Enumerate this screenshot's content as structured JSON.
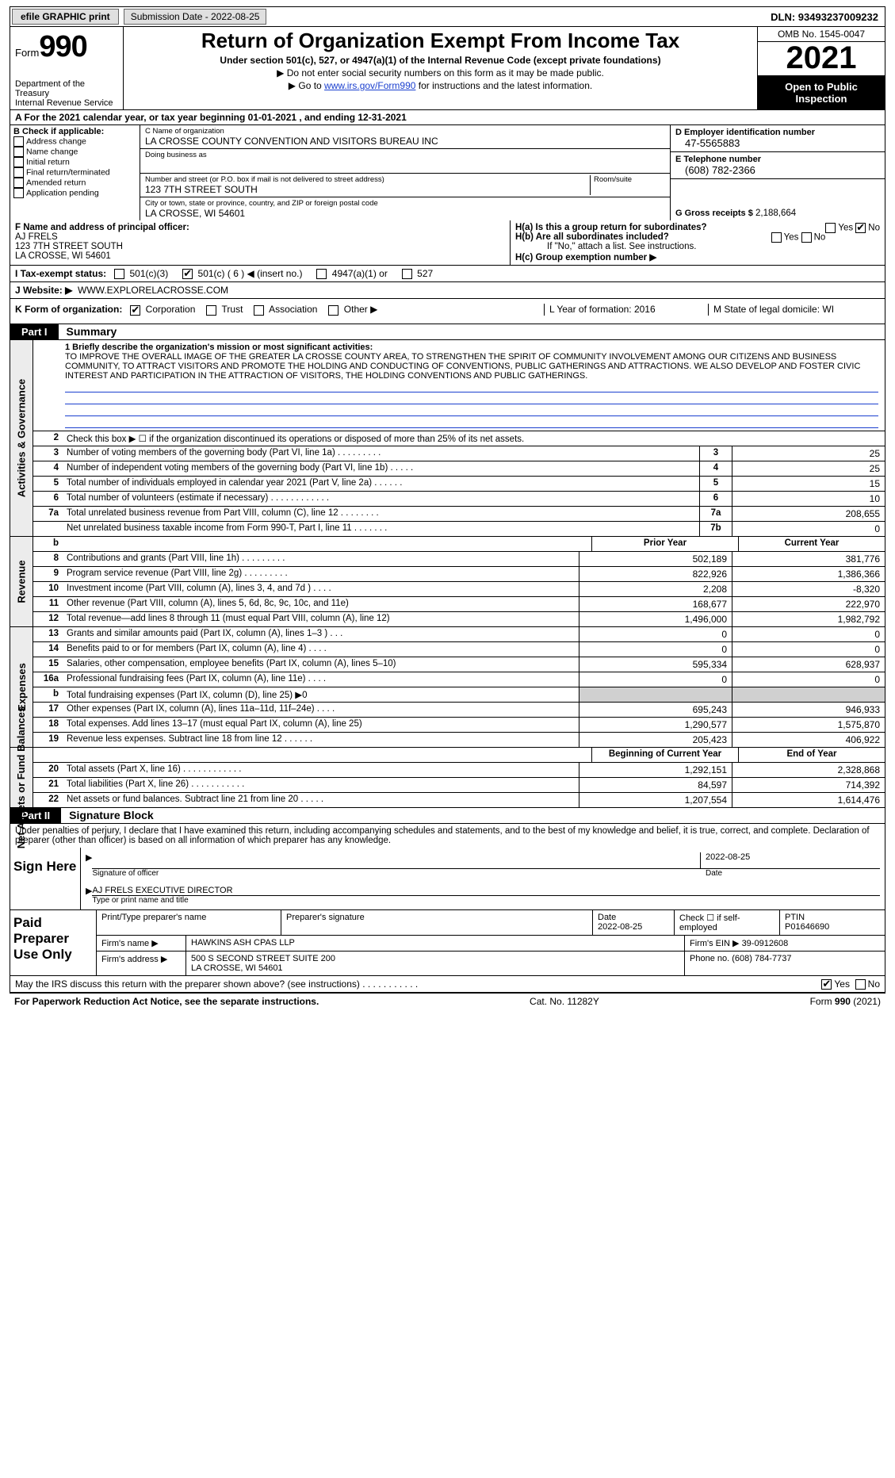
{
  "topbar": {
    "efile": "efile GRAPHIC print",
    "submission": "Submission Date - 2022-08-25",
    "dln": "DLN: 93493237009232"
  },
  "header": {
    "form_word": "Form",
    "form_num": "990",
    "title": "Return of Organization Exempt From Income Tax",
    "sub1": "Under section 501(c), 527, or 4947(a)(1) of the Internal Revenue Code (except private foundations)",
    "sub2": "▶ Do not enter social security numbers on this form as it may be made public.",
    "sub3_pre": "▶ Go to ",
    "sub3_link": "www.irs.gov/Form990",
    "sub3_post": " for instructions and the latest information.",
    "dept": "Department of the Treasury\nInternal Revenue Service",
    "omb": "OMB No. 1545-0047",
    "year": "2021",
    "open": "Open to Public Inspection"
  },
  "rowA": "A   For the 2021 calendar year, or tax year beginning 01-01-2021   , and ending 12-31-2021",
  "colB": {
    "label": "B Check if applicable:",
    "items": [
      "Address change",
      "Name change",
      "Initial return",
      "Final return/terminated",
      "Amended return",
      "Application pending"
    ]
  },
  "colC": {
    "name_label": "C Name of organization",
    "name": "LA CROSSE COUNTY CONVENTION AND VISITORS BUREAU INC",
    "dba_label": "Doing business as",
    "dba": "",
    "street_label": "Number and street (or P.O. box if mail is not delivered to street address)",
    "street": "123 7TH STREET SOUTH",
    "room_label": "Room/suite",
    "city_label": "City or town, state or province, country, and ZIP or foreign postal code",
    "city": "LA CROSSE, WI  54601"
  },
  "colD": {
    "ein_label": "D Employer identification number",
    "ein": "47-5565883",
    "phone_label": "E Telephone number",
    "phone": "(608) 782-2366",
    "gross_label": "G Gross receipts $",
    "gross": "2,188,664"
  },
  "colF": {
    "label": "F  Name and address of principal officer:",
    "name": "AJ FRELS",
    "street": "123 7TH STREET SOUTH",
    "city": "LA CROSSE, WI  54601"
  },
  "colH": {
    "a": "H(a)  Is this a group return for subordinates?",
    "a_no": true,
    "b": "H(b)  Are all subordinates included?",
    "b_note": "If \"No,\" attach a list. See instructions.",
    "c": "H(c)  Group exemption number ▶"
  },
  "rowI": {
    "label": "I   Tax-exempt status:",
    "opts": [
      "501(c)(3)",
      "501(c) ( 6 ) ◀ (insert no.)",
      "4947(a)(1) or",
      "527"
    ],
    "checked_idx": 1
  },
  "rowJ": {
    "label": "J   Website: ▶",
    "val": "WWW.EXPLORELACROSSE.COM"
  },
  "rowK": {
    "label": "K Form of organization:",
    "opts": [
      "Corporation",
      "Trust",
      "Association",
      "Other ▶"
    ],
    "checked_idx": 0,
    "L": "L Year of formation: 2016",
    "M": "M State of legal domicile: WI"
  },
  "part1_label": "Part I",
  "part1_title": "Summary",
  "mission_label": "1  Briefly describe the organization's mission or most significant activities:",
  "mission_text": "TO IMPROVE THE OVERALL IMAGE OF THE GREATER LA CROSSE COUNTY AREA, TO STRENGTHEN THE SPIRIT OF COMMUNITY INVOLVEMENT AMONG OUR CITIZENS AND BUSINESS COMMUNITY, TO ATTRACT VISITORS AND PROMOTE THE HOLDING AND CONDUCTING OF CONVENTIONS, PUBLIC GATHERINGS AND ATTRACTIONS. WE ALSO DEVELOP AND FOSTER CIVIC INTEREST AND PARTICIPATION IN THE ATTRACTION OF VISITORS, THE HOLDING CONVENTIONS AND PUBLIC GATHERINGS.",
  "line2": "Check this box ▶ ☐  if the organization discontinued its operations or disposed of more than 25% of its net assets.",
  "gov_lines": [
    {
      "n": "3",
      "d": "Number of voting members of the governing body (Part VI, line 1a)   .   .   .   .   .   .   .   .   .",
      "b": "3",
      "v": "25"
    },
    {
      "n": "4",
      "d": "Number of independent voting members of the governing body (Part VI, line 1b)   .   .   .   .   .",
      "b": "4",
      "v": "25"
    },
    {
      "n": "5",
      "d": "Total number of individuals employed in calendar year 2021 (Part V, line 2a)   .   .   .   .   .   .",
      "b": "5",
      "v": "15"
    },
    {
      "n": "6",
      "d": "Total number of volunteers (estimate if necessary)   .   .   .   .   .   .   .   .   .   .   .   .",
      "b": "6",
      "v": "10"
    },
    {
      "n": "7a",
      "d": "Total unrelated business revenue from Part VIII, column (C), line 12   .   .   .   .   .   .   .   .",
      "b": "7a",
      "v": "208,655"
    },
    {
      "n": "",
      "d": "Net unrelated business taxable income from Form 990-T, Part I, line 11   .   .   .   .   .   .   .",
      "b": "7b",
      "v": "0"
    }
  ],
  "rev_header": {
    "n": "b",
    "d": "",
    "prior": "Prior Year",
    "curr": "Current Year"
  },
  "rev_lines": [
    {
      "n": "8",
      "d": "Contributions and grants (Part VIII, line 1h)   .   .   .   .   .   .   .   .   .",
      "p": "502,189",
      "c": "381,776"
    },
    {
      "n": "9",
      "d": "Program service revenue (Part VIII, line 2g)   .   .   .   .   .   .   .   .   .",
      "p": "822,926",
      "c": "1,386,366"
    },
    {
      "n": "10",
      "d": "Investment income (Part VIII, column (A), lines 3, 4, and 7d )   .   .   .   .",
      "p": "2,208",
      "c": "-8,320"
    },
    {
      "n": "11",
      "d": "Other revenue (Part VIII, column (A), lines 5, 6d, 8c, 9c, 10c, and 11e)",
      "p": "168,677",
      "c": "222,970"
    },
    {
      "n": "12",
      "d": "Total revenue—add lines 8 through 11 (must equal Part VIII, column (A), line 12)",
      "p": "1,496,000",
      "c": "1,982,792"
    }
  ],
  "exp_lines": [
    {
      "n": "13",
      "d": "Grants and similar amounts paid (Part IX, column (A), lines 1–3 )   .   .   .",
      "p": "0",
      "c": "0"
    },
    {
      "n": "14",
      "d": "Benefits paid to or for members (Part IX, column (A), line 4)   .   .   .   .",
      "p": "0",
      "c": "0"
    },
    {
      "n": "15",
      "d": "Salaries, other compensation, employee benefits (Part IX, column (A), lines 5–10)",
      "p": "595,334",
      "c": "628,937"
    },
    {
      "n": "16a",
      "d": "Professional fundraising fees (Part IX, column (A), line 11e)   .   .   .   .",
      "p": "0",
      "c": "0"
    },
    {
      "n": "b",
      "d": "Total fundraising expenses (Part IX, column (D), line 25) ▶0",
      "p": "__GRAY__",
      "c": "__GRAY__"
    },
    {
      "n": "17",
      "d": "Other expenses (Part IX, column (A), lines 11a–11d, 11f–24e)   .   .   .   .",
      "p": "695,243",
      "c": "946,933"
    },
    {
      "n": "18",
      "d": "Total expenses. Add lines 13–17 (must equal Part IX, column (A), line 25)",
      "p": "1,290,577",
      "c": "1,575,870"
    },
    {
      "n": "19",
      "d": "Revenue less expenses. Subtract line 18 from line 12   .   .   .   .   .   .",
      "p": "205,423",
      "c": "406,922"
    }
  ],
  "net_header": {
    "prior": "Beginning of Current Year",
    "curr": "End of Year"
  },
  "net_lines": [
    {
      "n": "20",
      "d": "Total assets (Part X, line 16)   .   .   .   .   .   .   .   .   .   .   .   .",
      "p": "1,292,151",
      "c": "2,328,868"
    },
    {
      "n": "21",
      "d": "Total liabilities (Part X, line 26)   .   .   .   .   .   .   .   .   .   .   .",
      "p": "84,597",
      "c": "714,392"
    },
    {
      "n": "22",
      "d": "Net assets or fund balances. Subtract line 21 from line 20   .   .   .   .   .",
      "p": "1,207,554",
      "c": "1,614,476"
    }
  ],
  "part2_label": "Part II",
  "part2_title": "Signature Block",
  "sig_intro": "Under penalties of perjury, I declare that I have examined this return, including accompanying schedules and statements, and to the best of my knowledge and belief, it is true, correct, and complete. Declaration of preparer (other than officer) is based on all information of which preparer has any knowledge.",
  "sign_here": "Sign Here",
  "sig_officer_label": "Signature of officer",
  "sig_date": "2022-08-25",
  "sig_date_label": "Date",
  "sig_name": "AJ FRELS  EXECUTIVE DIRECTOR",
  "sig_name_label": "Type or print name and title",
  "paid_prep": "Paid Preparer Use Only",
  "prep": {
    "h1": "Print/Type preparer's name",
    "h2": "Preparer's signature",
    "h3": "Date",
    "date": "2022-08-25",
    "h4": "Check ☐ if self-employed",
    "h5": "PTIN",
    "ptin": "P01646690",
    "firm_label": "Firm's name    ▶",
    "firm": "HAWKINS ASH CPAS LLP",
    "ein_label": "Firm's EIN ▶",
    "ein": "39-0912608",
    "addr_label": "Firm's address ▶",
    "addr1": "500 S SECOND STREET SUITE 200",
    "addr2": "LA CROSSE, WI  54601",
    "phone_label": "Phone no.",
    "phone": "(608) 784-7737"
  },
  "may_row": "May the IRS discuss this return with the preparer shown above? (see instructions)   .   .   .   .   .   .   .   .   .   .   .",
  "may_yes": true,
  "footer": {
    "left": "For Paperwork Reduction Act Notice, see the separate instructions.",
    "mid": "Cat. No. 11282Y",
    "right": "Form 990 (2021)"
  },
  "vtabs": {
    "gov": "Activities & Governance",
    "rev": "Revenue",
    "exp": "Expenses",
    "net": "Net Assets or Fund Balances"
  }
}
